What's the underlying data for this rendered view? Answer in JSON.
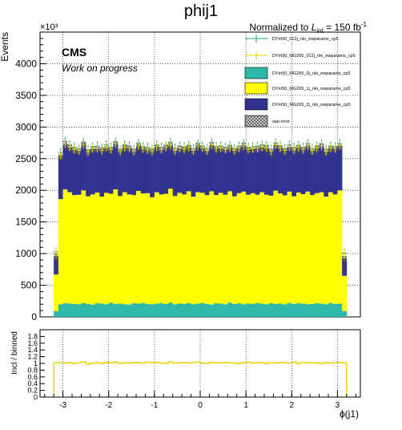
{
  "title": "phij1",
  "lumi": {
    "prefix": "Normalized to ",
    "L": "L",
    "sub": "int",
    "mid": " = 150 fb",
    "sup": "-1"
  },
  "cms": {
    "label": "CMS",
    "sublabel": "Work on progress"
  },
  "colors": {
    "teal": "#2fb8a9",
    "yellow": "#ffff00",
    "navy": "#31338f",
    "data_teal": "#2a9d8f",
    "data_yellow": "#e8d200",
    "ratio_line": "#e8d200"
  },
  "legend": [
    {
      "kind": "marker",
      "color": "#2a9d8f",
      "label": "DYm50_012j_nlo_ewparams_cp5"
    },
    {
      "kind": "marker",
      "color": "#e8d200",
      "label": "DYm50_MG265_012j_nlo_ewparams_cp5"
    },
    {
      "kind": "fill",
      "color": "#2fb8a9",
      "label": "DYm50_MG265_0j_nlo_ewparams_cp5"
    },
    {
      "kind": "fill",
      "color": "#ffff00",
      "label": "DYm50_MG265_1j_nlo_ewparams_cp5"
    },
    {
      "kind": "fill",
      "color": "#31338f",
      "label": "DYm50_MG265_2j_nlo_ewparams_cp5"
    },
    {
      "kind": "hatch",
      "color": "#555555",
      "label": "stat error"
    }
  ],
  "chart_data": [
    {
      "type": "bar",
      "stacked": true,
      "ylabel": "Events",
      "ymultiplier": "×10³",
      "ylim": [
        0,
        4500
      ],
      "xlim": [
        -3.5,
        3.5
      ],
      "yticks": [
        0,
        500,
        1000,
        1500,
        2000,
        2500,
        3000,
        3500,
        4000
      ],
      "grid": true,
      "legend_position": "top-right",
      "bins": {
        "low": -3.2,
        "high": 3.2,
        "count": 64
      },
      "series": [
        {
          "name": "DYm50_MG265_0j_nlo_ewparams_cp5",
          "values": [
            90,
            200,
            215,
            210,
            205,
            200,
            220,
            205,
            195,
            215,
            210,
            200,
            225,
            205,
            210,
            200,
            195,
            215,
            210,
            220,
            205,
            200,
            210,
            215,
            205,
            225,
            200,
            210,
            205,
            215,
            200,
            210,
            220,
            205,
            195,
            215,
            210,
            200,
            225,
            205,
            215,
            200,
            210,
            205,
            220,
            210,
            200,
            215,
            205,
            210,
            200,
            220,
            205,
            215,
            210,
            200,
            205,
            215,
            210,
            200,
            220,
            205,
            210,
            90
          ]
        },
        {
          "name": "DYm50_MG265_1j_nlo_ewparams_cp5",
          "values": [
            580,
            1660,
            1800,
            1760,
            1720,
            1730,
            1780,
            1700,
            1740,
            1750,
            1690,
            1760,
            1720,
            1810,
            1700,
            1770,
            1740,
            1710,
            1780,
            1730,
            1750,
            1690,
            1760,
            1720,
            1740,
            1800,
            1710,
            1750,
            1730,
            1770,
            1700,
            1760,
            1740,
            1720,
            1790,
            1710,
            1750,
            1730,
            1760,
            1700,
            1740,
            1780,
            1720,
            1750,
            1710,
            1760,
            1730,
            1700,
            1790,
            1740,
            1720,
            1760,
            1700,
            1750,
            1730,
            1780,
            1720,
            1740,
            1760,
            1700,
            1750,
            1730,
            1790,
            560
          ]
        },
        {
          "name": "DYm50_MG265_2j_nlo_ewparams_cp5",
          "values": [
            280,
            680,
            720,
            700,
            710,
            690,
            730,
            700,
            720,
            680,
            740,
            700,
            690,
            720,
            710,
            700,
            730,
            690,
            720,
            700,
            680,
            730,
            710,
            700,
            740,
            690,
            720,
            700,
            710,
            690,
            720,
            740,
            700,
            690,
            720,
            730,
            700,
            710,
            690,
            720,
            700,
            730,
            710,
            690,
            720,
            700,
            740,
            690,
            710,
            720,
            700,
            690,
            730,
            710,
            700,
            720,
            690,
            710,
            730,
            700,
            690,
            720,
            700,
            270
          ]
        }
      ],
      "overlay_012j": [
        1030,
        2600,
        2770,
        2720,
        2680,
        2650,
        2760,
        2640,
        2690,
        2700,
        2660,
        2720,
        2680,
        2770,
        2640,
        2720,
        2700,
        2650,
        2740,
        2690,
        2680,
        2650,
        2720,
        2680,
        2700,
        2760,
        2670,
        2700,
        2690,
        2710,
        2660,
        2740,
        2700,
        2660,
        2760,
        2690,
        2700,
        2680,
        2710,
        2660,
        2700,
        2740,
        2680,
        2690,
        2700,
        2720,
        2710,
        2650,
        2750,
        2700,
        2660,
        2720,
        2680,
        2710,
        2680,
        2740,
        2660,
        2700,
        2730,
        2650,
        2700,
        2690,
        2740,
        1010
      ],
      "overlay_MG265_012j": [
        1010,
        2560,
        2730,
        2690,
        2650,
        2630,
        2720,
        2610,
        2660,
        2670,
        2630,
        2690,
        2650,
        2740,
        2620,
        2680,
        2670,
        2620,
        2700,
        2660,
        2640,
        2620,
        2690,
        2650,
        2680,
        2710,
        2630,
        2670,
        2650,
        2680,
        2630,
        2700,
        2670,
        2630,
        2720,
        2660,
        2670,
        2650,
        2670,
        2630,
        2670,
        2700,
        2650,
        2660,
        2670,
        2690,
        2670,
        2620,
        2720,
        2670,
        2630,
        2690,
        2640,
        2680,
        2650,
        2700,
        2630,
        2670,
        2700,
        2620,
        2670,
        2660,
        2710,
        990
      ]
    },
    {
      "type": "line",
      "xlabel": "ϕ(j1)",
      "ylabel": "Incl / binned",
      "ylim": [
        0,
        2
      ],
      "yticks": [
        0,
        0.2,
        0.4,
        0.6,
        0.8,
        1,
        1.2,
        1.4,
        1.6,
        1.8
      ],
      "xticks": [
        -3,
        -2,
        -1,
        0,
        1,
        2,
        3
      ],
      "bins": {
        "low": -3.2,
        "high": 3.2,
        "count": 64
      },
      "ratio": [
        1.02,
        1.02,
        1.01,
        1.03,
        1.0,
        1.02,
        1.05,
        0.98,
        1.01,
        1.02,
        1.0,
        1.03,
        1.02,
        1.04,
        1.0,
        1.02,
        1.01,
        1.03,
        1.02,
        1.01,
        1.04,
        1.02,
        1.03,
        1.01,
        1.0,
        1.05,
        1.01,
        1.02,
        1.03,
        1.01,
        1.02,
        1.04,
        1.01,
        1.0,
        1.03,
        1.02,
        1.01,
        1.03,
        1.02,
        1.01,
        1.0,
        1.02,
        1.04,
        1.01,
        1.02,
        1.03,
        1.0,
        1.02,
        1.01,
        1.03,
        1.02,
        1.01,
        1.04,
        1.0,
        1.02,
        1.03,
        1.01,
        1.02,
        1.0,
        1.03,
        1.01,
        1.02,
        1.03,
        1.02
      ]
    }
  ]
}
